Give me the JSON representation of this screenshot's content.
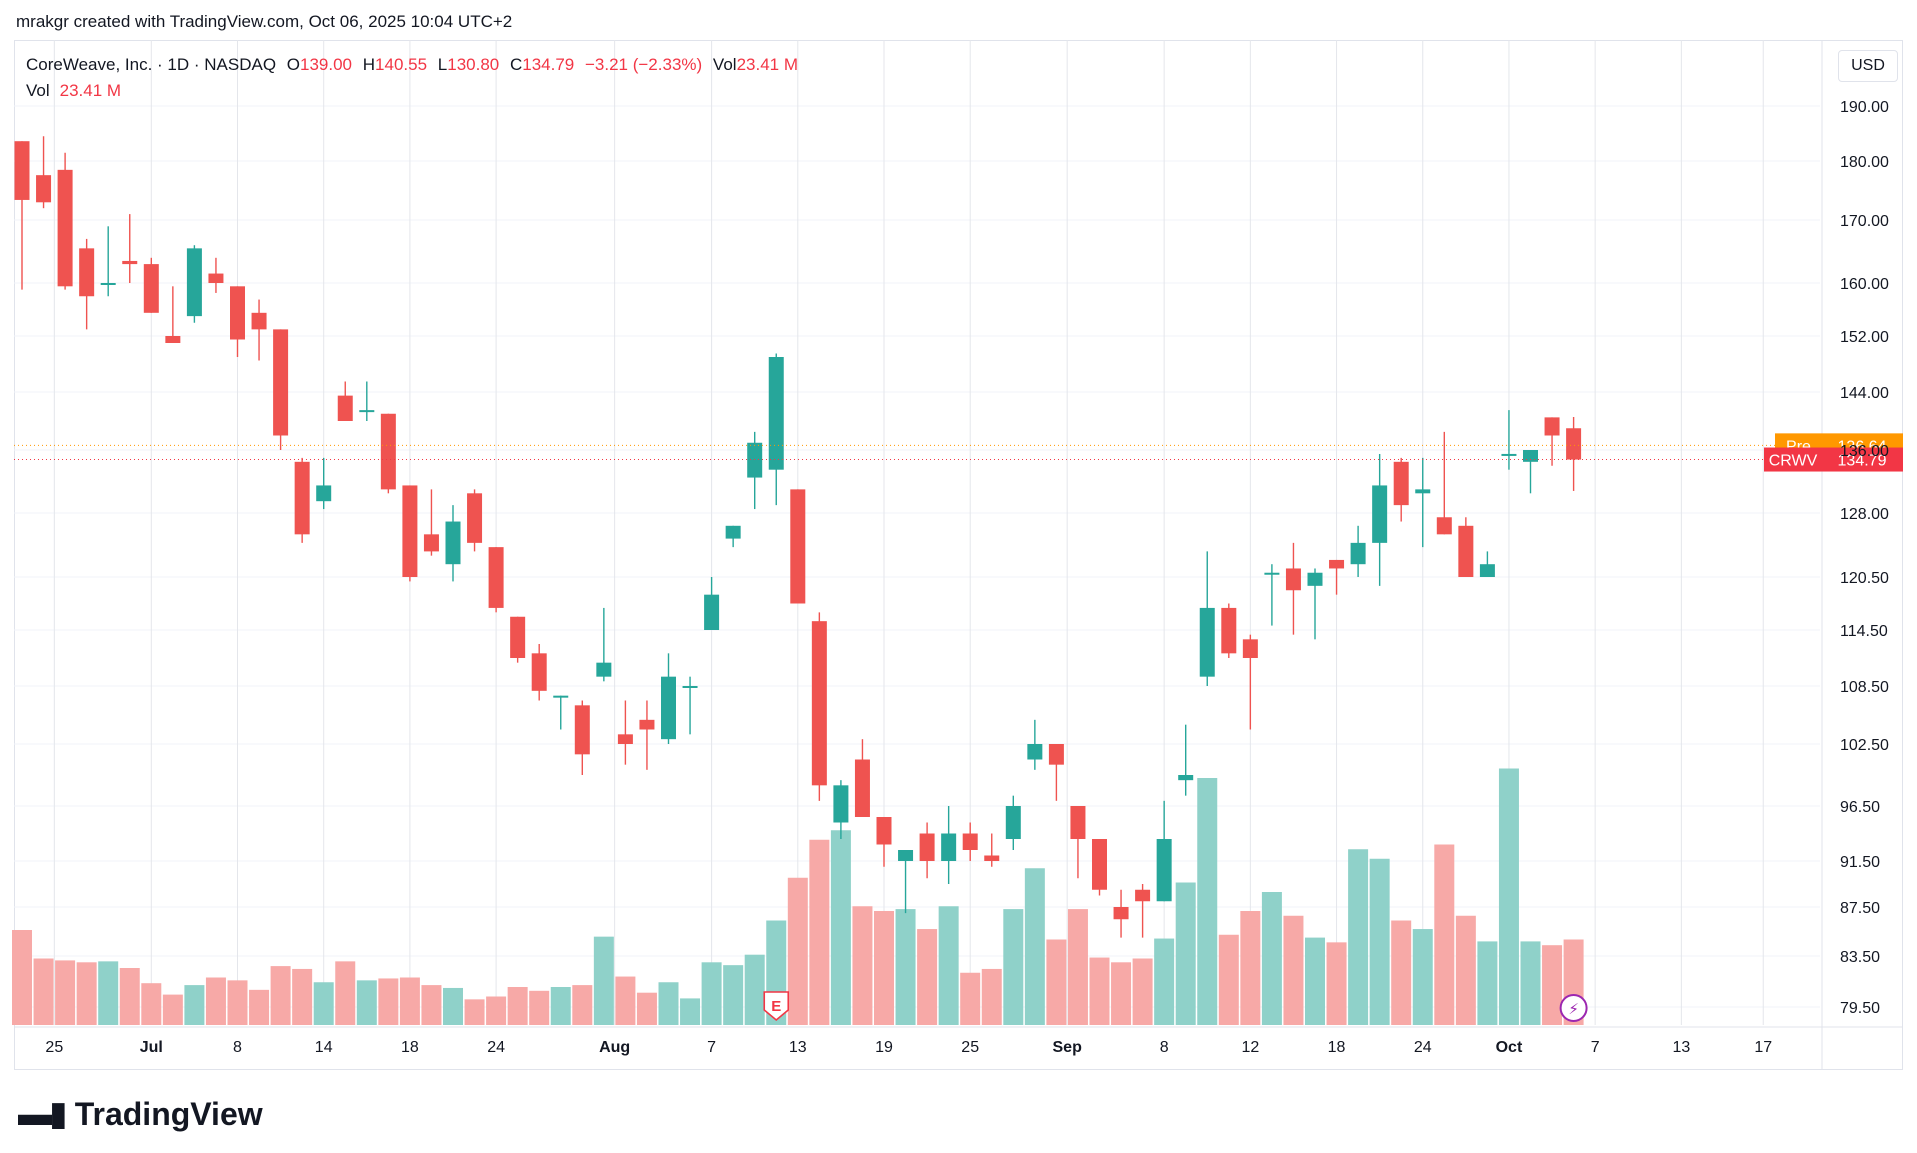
{
  "header": {
    "credit": "mrakgr created with TradingView.com, Oct 06, 2025 10:04 UTC+2"
  },
  "legend": {
    "symbol": "CoreWeave, Inc. · 1D · NASDAQ",
    "o_label": "O",
    "o_value": "139.00",
    "h_label": "H",
    "h_value": "140.55",
    "l_label": "L",
    "l_value": "130.80",
    "c_label": "C",
    "c_value": "134.79",
    "change": "−3.21 (−2.33%)",
    "vol_label": "Vol",
    "vol_value": "23.41 M"
  },
  "vol_legend": {
    "label": "Vol",
    "value": "23.41 M"
  },
  "price_axis": {
    "currency": "USD"
  },
  "footer": {
    "brand": "TradingView"
  },
  "colors": {
    "up": "#26a69a",
    "down": "#ef5350",
    "vol_up": "#8fd1c9",
    "vol_down": "#f7a9a7",
    "pre": "#ff9800",
    "last": "#f23645"
  },
  "chart_data": {
    "type": "candlestick",
    "symbol": "CRWV",
    "y_ticks": [
      "190.00",
      "180.00",
      "170.00",
      "160.00",
      "152.00",
      "144.00",
      "136.00",
      "128.00",
      "120.50",
      "114.50",
      "108.50",
      "102.50",
      "96.50",
      "91.50",
      "87.50",
      "83.50",
      "79.50"
    ],
    "x_ticks": [
      "25",
      "Jul",
      "8",
      "14",
      "18",
      "24",
      "Aug",
      "7",
      "13",
      "19",
      "25",
      "Sep",
      "8",
      "12",
      "18",
      "24",
      "Oct",
      "7",
      "13",
      "17"
    ],
    "price_labels": [
      {
        "tag": "Pre",
        "value": "136.64",
        "price": 136.64,
        "color": "#ff9800"
      },
      {
        "tag": "CRWV",
        "value": "134.79",
        "price": 134.79,
        "color": "#f23645"
      }
    ],
    "markers": [
      {
        "label": "E",
        "index": 35,
        "kind": "earnings"
      },
      {
        "label": "⚡",
        "index": 72,
        "kind": "event"
      }
    ],
    "candles": [
      {
        "date": "2025-06-23",
        "o": 183.6,
        "h": 183.6,
        "l": 159.0,
        "c": 173.4,
        "v": 1.0
      },
      {
        "date": "2025-06-24",
        "o": 177.6,
        "h": 184.5,
        "l": 172.0,
        "c": 173.0,
        "v": 0.7
      },
      {
        "date": "2025-06-25",
        "o": 178.5,
        "h": 181.5,
        "l": 159.0,
        "c": 159.5,
        "v": 0.68
      },
      {
        "date": "2025-06-26",
        "o": 165.5,
        "h": 167.0,
        "l": 153.0,
        "c": 158.0,
        "v": 0.66
      },
      {
        "date": "2025-06-27",
        "o": 160.0,
        "h": 169.0,
        "l": 158.0,
        "c": 160.0,
        "v": 0.67
      },
      {
        "date": "2025-06-30",
        "o": 163.5,
        "h": 171.0,
        "l": 160.0,
        "c": 163.0,
        "v": 0.6
      },
      {
        "date": "2025-07-01",
        "o": 163.0,
        "h": 164.0,
        "l": 155.5,
        "c": 155.5,
        "v": 0.44
      },
      {
        "date": "2025-07-02",
        "o": 152.0,
        "h": 159.5,
        "l": 151.0,
        "c": 151.0,
        "v": 0.32
      },
      {
        "date": "2025-07-03",
        "o": 155.0,
        "h": 166.0,
        "l": 154.0,
        "c": 165.5,
        "v": 0.42
      },
      {
        "date": "2025-07-07",
        "o": 161.5,
        "h": 164.0,
        "l": 158.5,
        "c": 160.0,
        "v": 0.5
      },
      {
        "date": "2025-07-08",
        "o": 159.5,
        "h": 159.5,
        "l": 149.0,
        "c": 151.5,
        "v": 0.47
      },
      {
        "date": "2025-07-09",
        "o": 155.5,
        "h": 157.5,
        "l": 148.5,
        "c": 153.0,
        "v": 0.37
      },
      {
        "date": "2025-07-10",
        "o": 153.0,
        "h": 153.0,
        "l": 136.0,
        "c": 138.0,
        "v": 0.62
      },
      {
        "date": "2025-07-11",
        "o": 134.5,
        "h": 135.0,
        "l": 124.5,
        "c": 125.5,
        "v": 0.59
      },
      {
        "date": "2025-07-14",
        "o": 129.5,
        "h": 135.0,
        "l": 128.5,
        "c": 131.5,
        "v": 0.45
      },
      {
        "date": "2025-07-15",
        "o": 143.5,
        "h": 145.5,
        "l": 140.0,
        "c": 140.0,
        "v": 0.67
      },
      {
        "date": "2025-07-16",
        "o": 141.5,
        "h": 145.5,
        "l": 140.0,
        "c": 141.5,
        "v": 0.47
      },
      {
        "date": "2025-07-17",
        "o": 141.0,
        "h": 141.0,
        "l": 130.5,
        "c": 131.0,
        "v": 0.49
      },
      {
        "date": "2025-07-18",
        "o": 131.5,
        "h": 131.5,
        "l": 120.0,
        "c": 120.5,
        "v": 0.5
      },
      {
        "date": "2025-07-21",
        "o": 125.5,
        "h": 131.0,
        "l": 123.0,
        "c": 123.5,
        "v": 0.42
      },
      {
        "date": "2025-07-22",
        "o": 122.0,
        "h": 129.0,
        "l": 120.0,
        "c": 127.0,
        "v": 0.39
      },
      {
        "date": "2025-07-23",
        "o": 130.5,
        "h": 131.0,
        "l": 123.5,
        "c": 124.5,
        "v": 0.27
      },
      {
        "date": "2025-07-24",
        "o": 124.0,
        "h": 124.0,
        "l": 116.5,
        "c": 117.0,
        "v": 0.3
      },
      {
        "date": "2025-07-25",
        "o": 116.0,
        "h": 116.0,
        "l": 111.0,
        "c": 111.5,
        "v": 0.4
      },
      {
        "date": "2025-07-28",
        "o": 112.0,
        "h": 113.0,
        "l": 107.0,
        "c": 108.0,
        "v": 0.36
      },
      {
        "date": "2025-07-29",
        "o": 107.5,
        "h": 107.5,
        "l": 104.0,
        "c": 107.5,
        "v": 0.4
      },
      {
        "date": "2025-07-30",
        "o": 106.5,
        "h": 107.0,
        "l": 99.5,
        "c": 101.5,
        "v": 0.42
      },
      {
        "date": "2025-07-31",
        "o": 109.5,
        "h": 117.0,
        "l": 109.0,
        "c": 111.0,
        "v": 0.93
      },
      {
        "date": "2025-08-01",
        "o": 103.5,
        "h": 107.0,
        "l": 100.5,
        "c": 102.5,
        "v": 0.51
      },
      {
        "date": "2025-08-04",
        "o": 105.0,
        "h": 107.0,
        "l": 100.0,
        "c": 104.0,
        "v": 0.34
      },
      {
        "date": "2025-08-05",
        "o": 103.0,
        "h": 112.0,
        "l": 102.5,
        "c": 109.5,
        "v": 0.45
      },
      {
        "date": "2025-08-06",
        "o": 108.5,
        "h": 109.5,
        "l": 103.5,
        "c": 108.5,
        "v": 0.28
      },
      {
        "date": "2025-08-07",
        "o": 114.5,
        "h": 120.5,
        "l": 114.5,
        "c": 118.5,
        "v": 0.66
      },
      {
        "date": "2025-08-08",
        "o": 125.0,
        "h": 126.5,
        "l": 124.0,
        "c": 126.5,
        "v": 0.63
      },
      {
        "date": "2025-08-11",
        "o": 132.5,
        "h": 138.5,
        "l": 128.5,
        "c": 137.0,
        "v": 0.74
      },
      {
        "date": "2025-08-12",
        "o": 133.5,
        "h": 149.5,
        "l": 129.0,
        "c": 149.0,
        "v": 1.1
      },
      {
        "date": "2025-08-13",
        "o": 131.0,
        "h": 131.0,
        "l": 117.5,
        "c": 117.5,
        "v": 1.55
      },
      {
        "date": "2025-08-14",
        "o": 115.5,
        "h": 116.5,
        "l": 97.0,
        "c": 98.5,
        "v": 1.95
      },
      {
        "date": "2025-08-15",
        "o": 95.0,
        "h": 99.0,
        "l": 93.5,
        "c": 98.5,
        "v": 2.05
      },
      {
        "date": "2025-08-18",
        "o": 101.0,
        "h": 103.0,
        "l": 95.5,
        "c": 95.5,
        "v": 1.25
      },
      {
        "date": "2025-08-19",
        "o": 95.5,
        "h": 95.5,
        "l": 91.0,
        "c": 93.0,
        "v": 1.2
      },
      {
        "date": "2025-08-20",
        "o": 91.5,
        "h": 92.5,
        "l": 87.0,
        "c": 92.5,
        "v": 1.22
      },
      {
        "date": "2025-08-21",
        "o": 94.0,
        "h": 95.0,
        "l": 90.0,
        "c": 91.5,
        "v": 1.01
      },
      {
        "date": "2025-08-22",
        "o": 91.5,
        "h": 96.5,
        "l": 89.5,
        "c": 94.0,
        "v": 1.25
      },
      {
        "date": "2025-08-25",
        "o": 94.0,
        "h": 95.0,
        "l": 91.5,
        "c": 92.5,
        "v": 0.55
      },
      {
        "date": "2025-08-26",
        "o": 92.0,
        "h": 94.0,
        "l": 91.0,
        "c": 91.5,
        "v": 0.59
      },
      {
        "date": "2025-08-27",
        "o": 93.5,
        "h": 97.5,
        "l": 92.5,
        "c": 96.5,
        "v": 1.22
      },
      {
        "date": "2025-08-28",
        "o": 101.0,
        "h": 105.0,
        "l": 100.0,
        "c": 102.5,
        "v": 1.65
      },
      {
        "date": "2025-08-29",
        "o": 102.5,
        "h": 102.5,
        "l": 97.0,
        "c": 100.5,
        "v": 0.9
      },
      {
        "date": "2025-09-02",
        "o": 96.5,
        "h": 96.5,
        "l": 90.0,
        "c": 93.5,
        "v": 1.22
      },
      {
        "date": "2025-09-03",
        "o": 93.5,
        "h": 93.5,
        "l": 88.5,
        "c": 89.0,
        "v": 0.71
      },
      {
        "date": "2025-09-04",
        "o": 87.5,
        "h": 89.0,
        "l": 85.0,
        "c": 86.5,
        "v": 0.66
      },
      {
        "date": "2025-09-05",
        "o": 89.0,
        "h": 89.5,
        "l": 85.0,
        "c": 88.0,
        "v": 0.7
      },
      {
        "date": "2025-09-08",
        "o": 88.0,
        "h": 97.0,
        "l": 88.0,
        "c": 93.5,
        "v": 0.91
      },
      {
        "date": "2025-09-09",
        "o": 99.0,
        "h": 104.5,
        "l": 97.5,
        "c": 99.5,
        "v": 1.5
      },
      {
        "date": "2025-09-10",
        "o": 109.5,
        "h": 123.5,
        "l": 108.5,
        "c": 117.0,
        "v": 2.6
      },
      {
        "date": "2025-09-11",
        "o": 117.0,
        "h": 117.5,
        "l": 111.5,
        "c": 112.0,
        "v": 0.95
      },
      {
        "date": "2025-09-12",
        "o": 113.5,
        "h": 114.0,
        "l": 104.0,
        "c": 111.5,
        "v": 1.2
      },
      {
        "date": "2025-09-15",
        "o": 121.0,
        "h": 122.0,
        "l": 115.0,
        "c": 121.0,
        "v": 1.4
      },
      {
        "date": "2025-09-16",
        "o": 121.5,
        "h": 124.5,
        "l": 114.0,
        "c": 119.0,
        "v": 1.15
      },
      {
        "date": "2025-09-17",
        "o": 119.5,
        "h": 121.5,
        "l": 113.5,
        "c": 121.0,
        "v": 0.92
      },
      {
        "date": "2025-09-18",
        "o": 122.5,
        "h": 122.5,
        "l": 118.5,
        "c": 121.5,
        "v": 0.87
      },
      {
        "date": "2025-09-19",
        "o": 122.0,
        "h": 126.5,
        "l": 120.5,
        "c": 124.5,
        "v": 1.85
      },
      {
        "date": "2025-09-22",
        "o": 124.5,
        "h": 135.5,
        "l": 119.5,
        "c": 131.5,
        "v": 1.75
      },
      {
        "date": "2025-09-23",
        "o": 134.5,
        "h": 135.0,
        "l": 127.0,
        "c": 129.0,
        "v": 1.1
      },
      {
        "date": "2025-09-24",
        "o": 130.5,
        "h": 135.0,
        "l": 124.0,
        "c": 131.0,
        "v": 1.01
      },
      {
        "date": "2025-09-25",
        "o": 127.5,
        "h": 138.5,
        "l": 125.5,
        "c": 125.5,
        "v": 1.9
      },
      {
        "date": "2025-09-26",
        "o": 126.5,
        "h": 127.5,
        "l": 120.5,
        "c": 120.5,
        "v": 1.15
      },
      {
        "date": "2025-09-29",
        "o": 120.5,
        "h": 123.5,
        "l": 120.5,
        "c": 122.0,
        "v": 0.88
      },
      {
        "date": "2025-09-30",
        "o": 135.5,
        "h": 141.5,
        "l": 133.5,
        "c": 135.5,
        "v": 2.7
      },
      {
        "date": "2025-10-01",
        "o": 134.5,
        "h": 136.0,
        "l": 130.5,
        "c": 136.0,
        "v": 0.88
      },
      {
        "date": "2025-10-02",
        "o": 140.5,
        "h": 140.5,
        "l": 134.0,
        "c": 138.0,
        "v": 0.84
      },
      {
        "date": "2025-10-03",
        "o": 139.0,
        "h": 140.55,
        "l": 130.8,
        "c": 134.79,
        "v": 0.9
      }
    ]
  }
}
